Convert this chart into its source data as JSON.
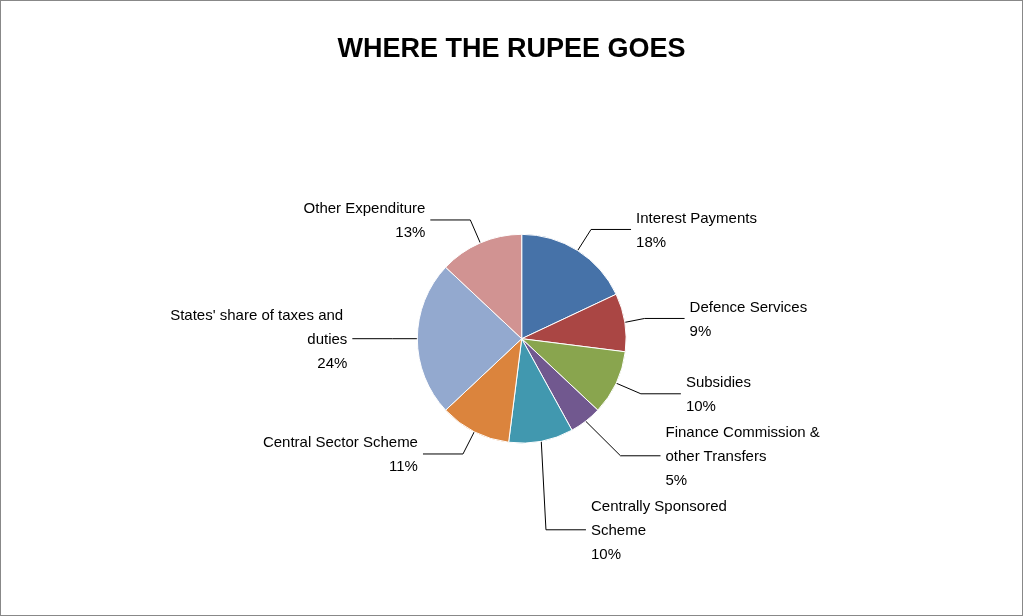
{
  "chart_data": {
    "type": "pie",
    "title": "WHERE THE RUPEE GOES",
    "categories": [
      "Interest Payments",
      "Defence Services",
      "Subsidies",
      "Finance Commission & other Transfers",
      "Centrally Sponsored Scheme",
      "Central Sector Scheme",
      "States' share of taxes and duties",
      "Other Expenditure"
    ],
    "values": [
      18,
      9,
      10,
      5,
      10,
      11,
      24,
      13
    ],
    "value_labels": [
      "18%",
      "9%",
      "10%",
      "5%",
      "10%",
      "11%",
      "24%",
      "13%"
    ],
    "colors": [
      "#4672a8",
      "#aa4644",
      "#89a54e",
      "#71588f",
      "#4198af",
      "#db843d",
      "#93a9cf",
      "#d19392"
    ],
    "legend": false
  }
}
